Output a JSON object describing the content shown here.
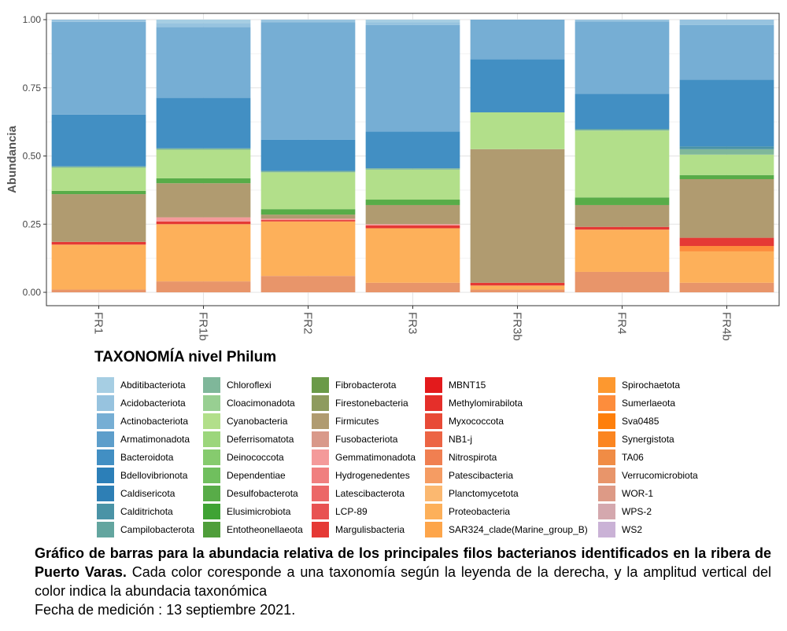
{
  "chart_data": {
    "type": "bar",
    "stacked": true,
    "ylabel": "Abundancia",
    "xlabel": "",
    "ylim": [
      0,
      1
    ],
    "yticks": [
      "0.00",
      "0.25",
      "0.50",
      "0.75",
      "1.00"
    ],
    "categories": [
      "FR1",
      "FR1b",
      "FR2",
      "FR3",
      "FR3b",
      "FR4",
      "FR4b"
    ],
    "grid": true,
    "legend_title": "TAXONOMÍA nivel Philum",
    "legend_position": "bottom",
    "series": [
      {
        "name": "Verrucomicrobiota",
        "color": "#e8956a",
        "values": [
          0.01,
          0.04,
          0.06,
          0.035,
          0.01,
          0.075,
          0.035
        ]
      },
      {
        "name": "Proteobacteria",
        "color": "#fdb05a",
        "values": [
          0.165,
          0.21,
          0.2,
          0.2,
          0.015,
          0.155,
          0.115
        ]
      },
      {
        "name": "Sumerlaeota",
        "color": "#fd8d3c",
        "values": [
          0.0,
          0.0,
          0.0,
          0.0,
          0.0,
          0.0,
          0.02
        ]
      },
      {
        "name": "Margulisbacteria",
        "color": "#e53935",
        "values": [
          0.01,
          0.01,
          0.005,
          0.01,
          0.01,
          0.01,
          0.03
        ]
      },
      {
        "name": "Gemmatimonadota",
        "color": "#f49a9a",
        "values": [
          0.0,
          0.015,
          0.005,
          0.005,
          0.0,
          0.0,
          0.0
        ]
      },
      {
        "name": "Firmicutes",
        "color": "#b09b70",
        "values": [
          0.175,
          0.125,
          0.015,
          0.07,
          0.49,
          0.08,
          0.215
        ]
      },
      {
        "name": "Desulfobacterota",
        "color": "#58ac48",
        "values": [
          0.012,
          0.018,
          0.02,
          0.02,
          0.0,
          0.028,
          0.015
        ]
      },
      {
        "name": "Cyanobacteria",
        "color": "#b2df8a",
        "values": [
          0.085,
          0.105,
          0.135,
          0.11,
          0.135,
          0.245,
          0.075
        ]
      },
      {
        "name": "Chloroflexi",
        "color": "#7fb79a",
        "values": [
          0.005,
          0.005,
          0.005,
          0.005,
          0.0,
          0.005,
          0.02
        ]
      },
      {
        "name": "Calditrichota",
        "color": "#4a93a6",
        "values": [
          0.0,
          0.0,
          0.0,
          0.0,
          0.0,
          0.0,
          0.01
        ]
      },
      {
        "name": "Bacteroidota",
        "color": "#428fc3",
        "values": [
          0.19,
          0.185,
          0.115,
          0.135,
          0.195,
          0.13,
          0.245
        ]
      },
      {
        "name": "Actinobacteriota",
        "color": "#76aed4",
        "values": [
          0.34,
          0.26,
          0.43,
          0.39,
          0.145,
          0.265,
          0.2
        ]
      },
      {
        "name": "Acidobacteriota",
        "color": "#97c3df",
        "values": [
          0.008,
          0.015,
          0.01,
          0.01,
          0.0,
          0.007,
          0.02
        ]
      }
    ]
  },
  "legend": {
    "title": "TAXONOMÍA nivel Philum",
    "columns": [
      [
        {
          "label": "Abditibacteriota",
          "color": "#a6cee3"
        },
        {
          "label": "Acidobacteriota",
          "color": "#97c3df"
        },
        {
          "label": "Actinobacteriota",
          "color": "#76aed4"
        },
        {
          "label": "Armatimonadota",
          "color": "#5d9ecb"
        },
        {
          "label": "Bacteroidota",
          "color": "#428fc3"
        },
        {
          "label": "Bdellovibrionota",
          "color": "#2c7fb8"
        },
        {
          "label": "Caldisericota",
          "color": "#2e7fb5"
        },
        {
          "label": "Calditrichota",
          "color": "#4a93a6"
        },
        {
          "label": "Campilobacterota",
          "color": "#63a59f"
        }
      ],
      [
        {
          "label": "Chloroflexi",
          "color": "#7fb79a"
        },
        {
          "label": "Cloacimonadota",
          "color": "#98cf92"
        },
        {
          "label": "Cyanobacteria",
          "color": "#b2df8a"
        },
        {
          "label": "Deferrisomatota",
          "color": "#9cd67c"
        },
        {
          "label": "Deinococcota",
          "color": "#86cb6e"
        },
        {
          "label": "Dependentiae",
          "color": "#70bf5e"
        },
        {
          "label": "Desulfobacterota",
          "color": "#58ac48"
        },
        {
          "label": "Elusimicrobiota",
          "color": "#3fa334"
        },
        {
          "label": "Entotheonellaeota",
          "color": "#4f9e3a"
        }
      ],
      [
        {
          "label": "Fibrobacterota",
          "color": "#6a9a48"
        },
        {
          "label": "Firestonebacteria",
          "color": "#8e9b5e"
        },
        {
          "label": "Firmicutes",
          "color": "#b09b70"
        },
        {
          "label": "Fusobacteriota",
          "color": "#d9998a"
        },
        {
          "label": "Gemmatimonadota",
          "color": "#f49a9a"
        },
        {
          "label": "Hydrogenedentes",
          "color": "#f07f7f"
        },
        {
          "label": "Latescibacterota",
          "color": "#ec6767"
        },
        {
          "label": "LCP-89",
          "color": "#e85252"
        },
        {
          "label": "Margulisbacteria",
          "color": "#e53935"
        }
      ],
      [
        {
          "label": "MBNT15",
          "color": "#e31a1c"
        },
        {
          "label": "Methylomirabilota",
          "color": "#e52f2a"
        },
        {
          "label": "Myxococcota",
          "color": "#e84a37"
        },
        {
          "label": "NB1-j",
          "color": "#ec6444"
        },
        {
          "label": "Nitrospirota",
          "color": "#f07f51"
        },
        {
          "label": "Patescibacteria",
          "color": "#f59c63"
        },
        {
          "label": "Planctomycetota",
          "color": "#fbb870"
        },
        {
          "label": "Proteobacteria",
          "color": "#fdb05a"
        },
        {
          "label": "SAR324_clade(Marine_group_B)",
          "color": "#fda54a"
        }
      ],
      [
        {
          "label": "Spirochaetota",
          "color": "#fd982f"
        },
        {
          "label": "Sumerlaeota",
          "color": "#fd8d3c"
        },
        {
          "label": "Sva0485",
          "color": "#fe7f0b"
        },
        {
          "label": "Synergistota",
          "color": "#fb8520"
        },
        {
          "label": "TA06",
          "color": "#f08c45"
        },
        {
          "label": "Verrucomicrobiota",
          "color": "#e8956a"
        },
        {
          "label": "WOR-1",
          "color": "#dd9a86"
        },
        {
          "label": "WPS-2",
          "color": "#d4a8ae"
        },
        {
          "label": "WS2",
          "color": "#cab2d6"
        }
      ]
    ]
  },
  "caption": {
    "bold": "Gráfico de barras para la abundacia relativa de los principales filos bacterianos identificados en la ribera de Puerto Varas.",
    "normal": " Cada color coresponde a una taxonomía según la leyenda de la derecha, y la amplitud vertical del color indica la abundacia taxonómica",
    "date": "Fecha de medición : 13 septiembre 2021."
  }
}
